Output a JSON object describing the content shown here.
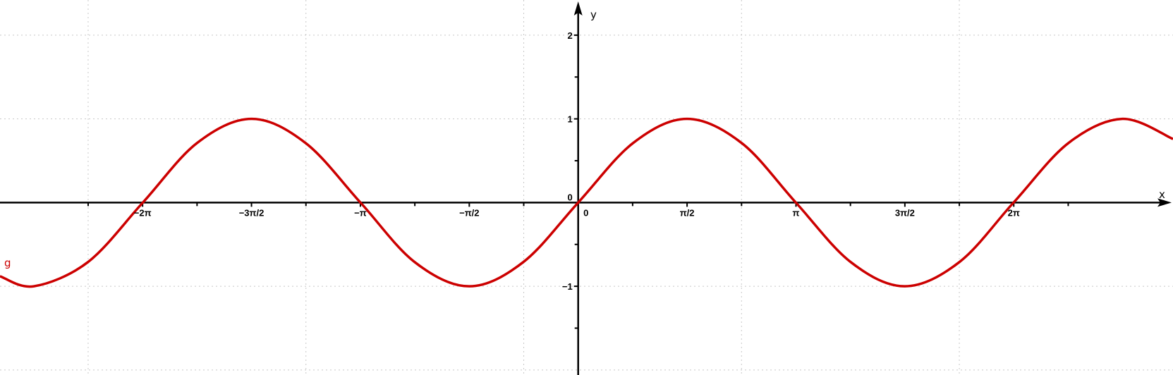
{
  "chart_data": {
    "type": "line",
    "function_label": "g",
    "curve_color": "#cc0000",
    "axis_color": "#000000",
    "grid_color": "#c8c8c8",
    "xlabel": "x",
    "ylabel": "y",
    "grid": true,
    "xlim": [
      -8.34,
      8.58
    ],
    "ylim": [
      -2.06,
      2.42
    ],
    "x_ticks": [
      {
        "value": -6.283185,
        "label": "−2π"
      },
      {
        "value": -4.712389,
        "label": "−3π/2"
      },
      {
        "value": -3.141593,
        "label": "−π"
      },
      {
        "value": -1.570796,
        "label": "−π/2"
      },
      {
        "value": 0,
        "label": "0"
      },
      {
        "value": 1.570796,
        "label": "π/2"
      },
      {
        "value": 3.141593,
        "label": "π"
      },
      {
        "value": 4.712389,
        "label": "3π/2"
      },
      {
        "value": 6.283185,
        "label": "2π"
      }
    ],
    "x_minor_ticks": [
      -7.068583,
      -5.497787,
      -3.926991,
      -2.356194,
      -0.785398,
      0.785398,
      2.356194,
      3.926991,
      5.497787,
      7.068583
    ],
    "y_ticks": [
      {
        "value": 2,
        "label": "2"
      },
      {
        "value": 1,
        "label": "1"
      },
      {
        "value": 0,
        "label": "0"
      },
      {
        "value": -1,
        "label": "−1"
      }
    ],
    "y_minor_ticks": [
      1.5,
      0.5,
      -0.5,
      -1.5
    ],
    "grid_x": [
      -7.068583,
      -3.926991,
      -0.785398,
      2.356194,
      5.497787,
      8.63938
    ],
    "grid_y": [
      2,
      1,
      -1,
      -2
    ],
    "series": [
      {
        "x": [
          -8.34,
          -7.85,
          -7.07,
          -6.28,
          -5.5,
          -4.71,
          -3.93,
          -3.14,
          -2.36,
          -1.57,
          -0.79,
          0,
          0.79,
          1.57,
          2.36,
          3.14,
          3.93,
          4.71,
          5.5,
          6.28,
          7.07,
          7.85,
          8.58
        ],
        "y": [
          -0.88,
          -1,
          -0.71,
          0,
          0.71,
          1,
          0.71,
          0,
          -0.71,
          -1,
          -0.71,
          0,
          0.71,
          1,
          0.71,
          0,
          -0.71,
          -1,
          -0.71,
          0,
          0.71,
          1,
          0.76
        ]
      }
    ]
  }
}
